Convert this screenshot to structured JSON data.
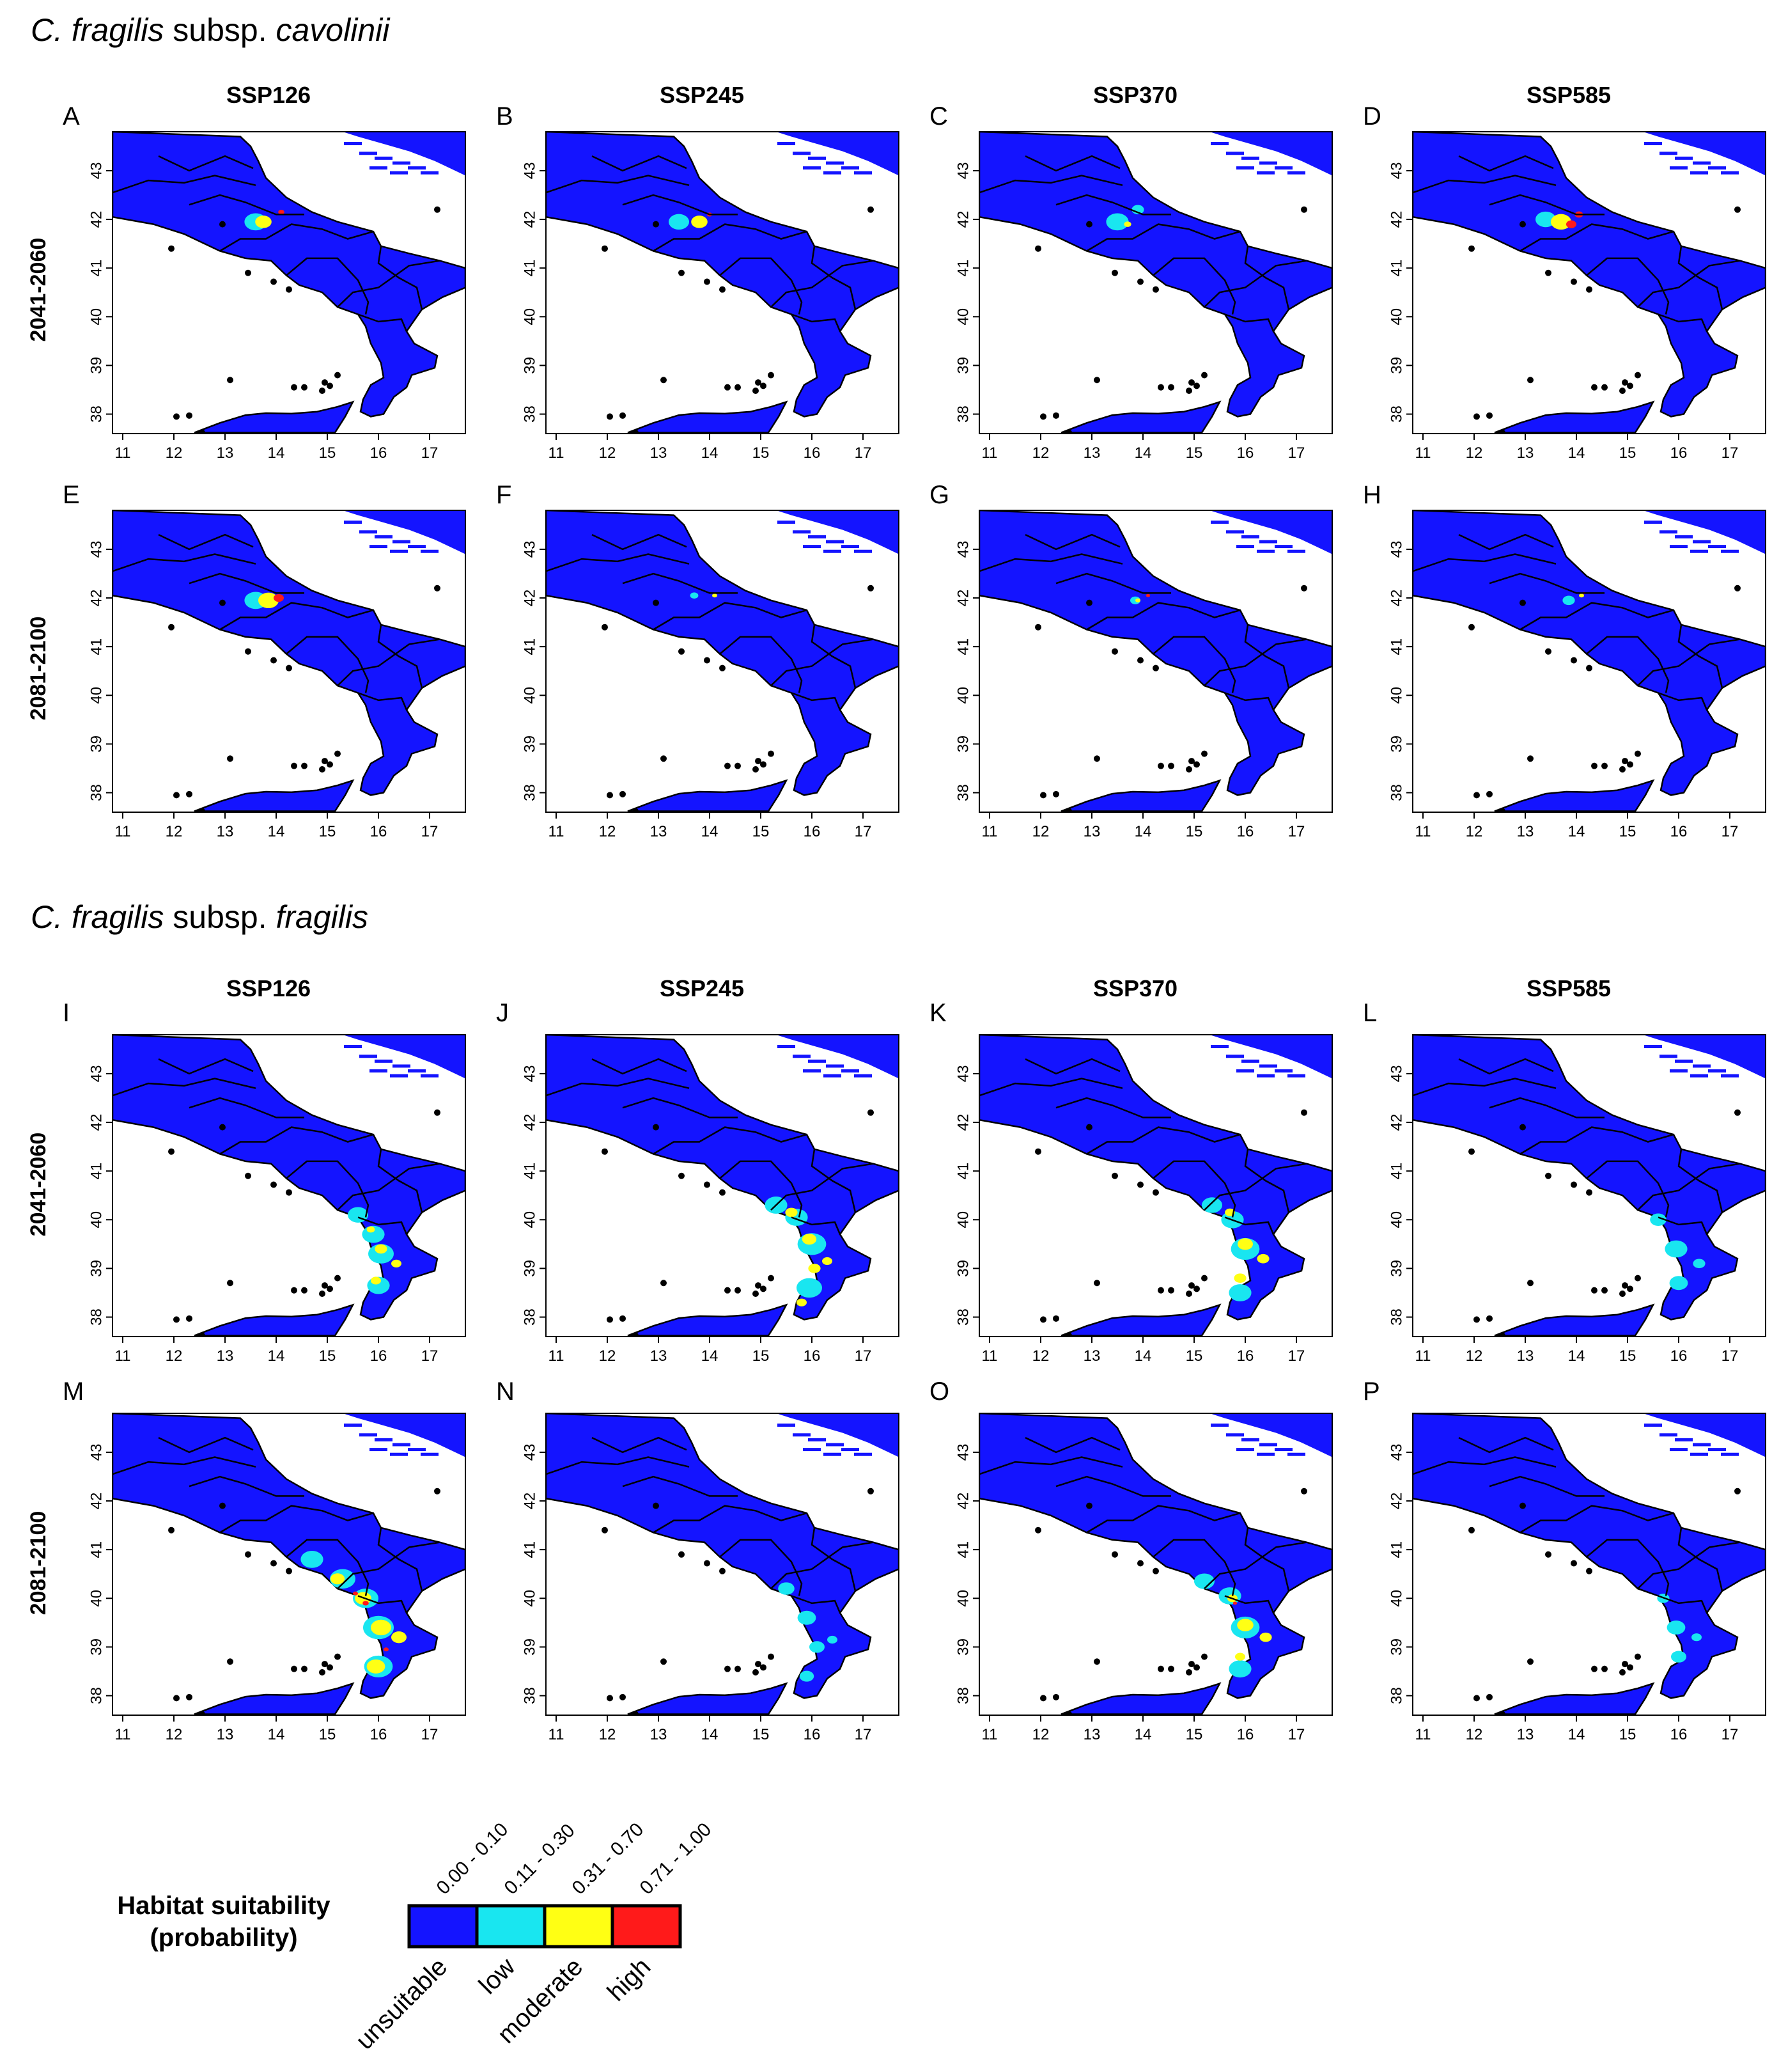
{
  "sections": [
    {
      "title_genus": "C. fragilis",
      "title_mid": " subsp. ",
      "title_subsp": "cavolinii"
    },
    {
      "title_genus": "C. fragilis",
      "title_mid": " subsp. ",
      "title_subsp": "fragilis"
    }
  ],
  "scenarios": [
    "SSP126",
    "SSP245",
    "SSP370",
    "SSP585"
  ],
  "periods": [
    "2041-2060",
    "2081-2100"
  ],
  "panel_letters": [
    "A",
    "B",
    "C",
    "D",
    "E",
    "F",
    "G",
    "H",
    "I",
    "J",
    "K",
    "L",
    "M",
    "N",
    "O",
    "P"
  ],
  "x_ticks": [
    "11",
    "12",
    "13",
    "14",
    "15",
    "16",
    "17"
  ],
  "y_ticks": [
    "38",
    "39",
    "40",
    "41",
    "42",
    "43"
  ],
  "legend": {
    "title_line1": "Habitat suitability",
    "title_line2": "(probability)",
    "classes": [
      {
        "range": "0.00 - 0.10",
        "label": "unsuitable",
        "color": "#1414ff"
      },
      {
        "range": "0.11 - 0.30",
        "label": "low",
        "color": "#19e6f0"
      },
      {
        "range": "0.31 - 0.70",
        "label": "moderate",
        "color": "#ffff14"
      },
      {
        "range": "0.71 - 1.00",
        "label": "high",
        "color": "#ff1a1a"
      }
    ]
  },
  "map_data": {
    "lon_range": [
      10.8,
      17.7
    ],
    "lat_range": [
      37.6,
      43.8
    ],
    "land_color": "#1414ff",
    "sea_color": "#ffffff"
  }
}
